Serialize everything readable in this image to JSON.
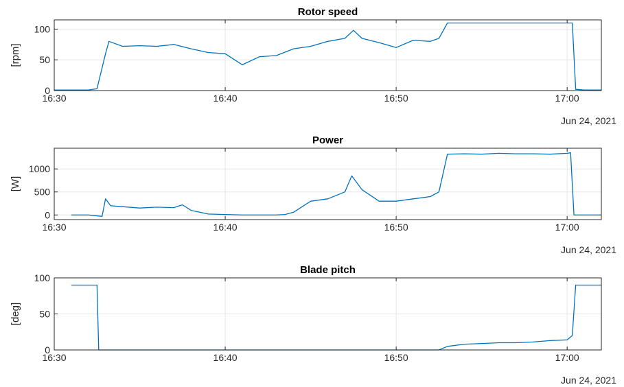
{
  "chart_data": [
    {
      "type": "line",
      "title": "Rotor speed",
      "ylabel": "[rpm]",
      "xlim": [
        "16:30",
        "17:02"
      ],
      "ylim": [
        0,
        115
      ],
      "yticks": [
        "0",
        "50",
        "100"
      ],
      "xticks": [
        "16:30",
        "16:40",
        "16:50",
        "17:00"
      ],
      "date_label": "Jun 24, 2021",
      "grid": true,
      "color": "#0072BD",
      "x": [
        "16:30",
        "16:31",
        "16:32",
        "16:32.5",
        "16:33",
        "16:33.2",
        "16:34",
        "16:35",
        "16:36",
        "16:37",
        "16:38",
        "16:39",
        "16:40",
        "16:41",
        "16:42",
        "16:43",
        "16:44",
        "16:45",
        "16:46",
        "16:47",
        "16:47.5",
        "16:48",
        "16:49",
        "16:50",
        "16:51",
        "16:52",
        "16:52.5",
        "16:53",
        "16:54",
        "16:55",
        "16:56",
        "16:57",
        "16:58",
        "16:59",
        "17:00",
        "17:00.3",
        "17:00.5",
        "17:01",
        "17:02"
      ],
      "values": [
        1,
        1,
        1,
        3,
        60,
        80,
        72,
        73,
        72,
        75,
        68,
        62,
        60,
        42,
        55,
        57,
        68,
        72,
        80,
        85,
        98,
        85,
        78,
        70,
        82,
        80,
        85,
        110,
        110,
        110,
        110,
        110,
        110,
        110,
        110,
        110,
        2,
        1,
        1
      ]
    },
    {
      "type": "line",
      "title": "Power",
      "ylabel": "[W]",
      "xlim": [
        "16:30",
        "17:02"
      ],
      "ylim": [
        -100,
        1450
      ],
      "yticks": [
        "0",
        "500",
        "1000"
      ],
      "xticks": [
        "16:30",
        "16:40",
        "16:50",
        "17:00"
      ],
      "date_label": "Jun 24, 2021",
      "grid": true,
      "color": "#0072BD",
      "x": [
        "16:31",
        "16:32",
        "16:32.8",
        "16:33",
        "16:33.3",
        "16:34",
        "16:35",
        "16:36",
        "16:37",
        "16:37.5",
        "16:38",
        "16:39",
        "16:40",
        "16:41",
        "16:42",
        "16:43",
        "16:43.5",
        "16:44",
        "16:45",
        "16:46",
        "16:47",
        "16:47.4",
        "16:48",
        "16:49",
        "16:50",
        "16:51",
        "16:52",
        "16:52.5",
        "16:53",
        "16:54",
        "16:55",
        "16:56",
        "16:57",
        "16:58",
        "16:59",
        "17:00",
        "17:00.2",
        "17:00.4",
        "17:01",
        "17:02"
      ],
      "values": [
        0,
        0,
        -30,
        350,
        200,
        180,
        150,
        170,
        160,
        220,
        100,
        20,
        10,
        0,
        0,
        0,
        10,
        60,
        300,
        350,
        500,
        850,
        550,
        300,
        300,
        350,
        400,
        500,
        1320,
        1330,
        1320,
        1340,
        1330,
        1330,
        1320,
        1340,
        1350,
        0,
        0,
        0
      ]
    },
    {
      "type": "line",
      "title": "Blade pitch",
      "ylabel": "[deg]",
      "xlim": [
        "16:30",
        "17:02"
      ],
      "ylim": [
        0,
        100
      ],
      "yticks": [
        "0",
        "50",
        "100"
      ],
      "xticks": [
        "16:30",
        "16:40",
        "16:50",
        "17:00"
      ],
      "date_label": "Jun 24, 2021",
      "grid": true,
      "color": "#0072BD",
      "x": [
        "16:31",
        "16:32",
        "16:32.5",
        "16:32.6",
        "16:35",
        "16:40",
        "16:45",
        "16:50",
        "16:52.5",
        "16:53",
        "16:54",
        "16:55",
        "16:56",
        "16:57",
        "16:58",
        "16:59",
        "17:00",
        "17:00.3",
        "17:00.5",
        "17:01",
        "17:02"
      ],
      "values": [
        90,
        90,
        90,
        0,
        0,
        0,
        0,
        0,
        0,
        5,
        8,
        9,
        10,
        10,
        11,
        13,
        14,
        20,
        90,
        90,
        90
      ]
    }
  ]
}
